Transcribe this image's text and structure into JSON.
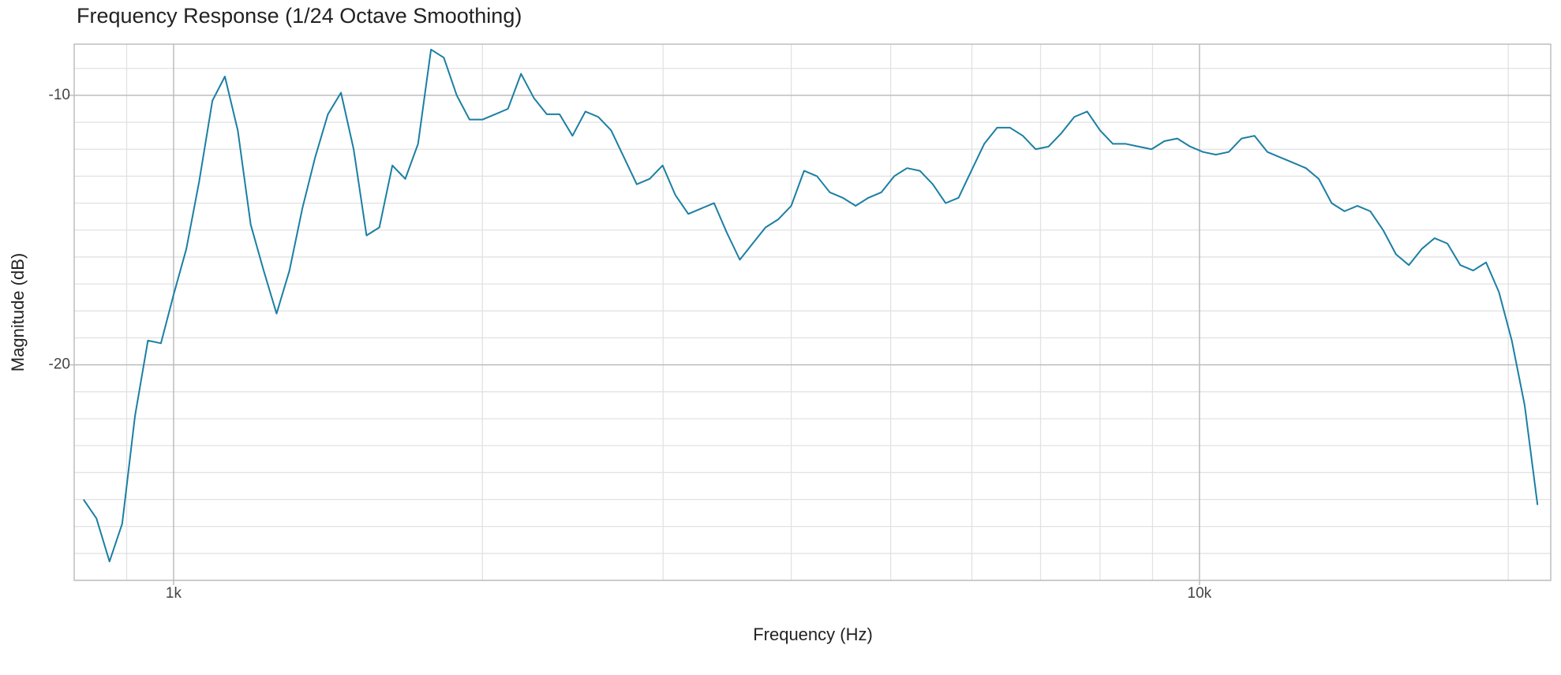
{
  "chart_data": {
    "type": "line",
    "title": "Frequency Response",
    "subtitle": "(1/24 Octave Smoothing)",
    "x_label": "Frequency (Hz)",
    "y_label": "Magnitude (dB)",
    "x_log": true,
    "grid": true,
    "color": "#1b7fa3",
    "xlim": [
      800,
      22000
    ],
    "ylim": [
      -28,
      -8.1
    ],
    "xticks": [
      {
        "value": 1000,
        "label": "1k"
      },
      {
        "value": 10000,
        "label": "10k"
      }
    ],
    "xminor_ticks": [
      900,
      2000,
      3000,
      4000,
      5000,
      6000,
      7000,
      8000,
      9000,
      20000
    ],
    "yticks": [
      -20,
      -10
    ],
    "yminor_ticks": [
      -28,
      -27,
      -26,
      -25,
      -24,
      -23,
      -22,
      -21,
      -19,
      -18,
      -17,
      -16,
      -15,
      -14,
      -13,
      -12,
      -11,
      -9
    ],
    "x": [
      817,
      841,
      866,
      891,
      917,
      944,
      972,
      1000,
      1029,
      1059,
      1091,
      1122,
      1155,
      1189,
      1224,
      1260,
      1297,
      1335,
      1374,
      1414,
      1456,
      1498,
      1542,
      1587,
      1634,
      1682,
      1731,
      1782,
      1834,
      1888,
      1943,
      2000,
      2059,
      2118,
      2181,
      2245,
      2311,
      2378,
      2448,
      2520,
      2594,
      2670,
      2748,
      2828,
      2911,
      2997,
      3084,
      3175,
      3268,
      3364,
      3462,
      3564,
      3668,
      3776,
      3886,
      4000,
      4117,
      4238,
      4362,
      4490,
      4622,
      4757,
      4896,
      5040,
      5188,
      5339,
      5496,
      5657,
      5823,
      5993,
      6169,
      6350,
      6536,
      6727,
      6924,
      7127,
      7336,
      7551,
      7772,
      8000,
      8234,
      8476,
      8724,
      8980,
      9243,
      9514,
      9793,
      10079,
      10375,
      10679,
      10992,
      11314,
      11646,
      11987,
      12338,
      12699,
      13071,
      13454,
      13848,
      14254,
      14672,
      15102,
      15544,
      16000,
      16469,
      16951,
      17448,
      17959,
      18486,
      19027,
      19585,
      20159,
      20749,
      21357
    ],
    "values": [
      -25.0,
      -25.7,
      -27.3,
      -25.9,
      -21.9,
      -19.1,
      -19.2,
      -17.4,
      -15.7,
      -13.2,
      -10.2,
      -9.3,
      -11.3,
      -14.8,
      -16.5,
      -18.1,
      -16.5,
      -14.2,
      -12.3,
      -10.7,
      -9.9,
      -12.0,
      -15.2,
      -14.9,
      -12.6,
      -13.1,
      -11.8,
      -8.3,
      -8.6,
      -10.0,
      -10.9,
      -10.9,
      -10.7,
      -10.5,
      -9.2,
      -10.1,
      -10.7,
      -10.7,
      -11.5,
      -10.6,
      -10.8,
      -11.3,
      -12.3,
      -13.3,
      -13.1,
      -12.6,
      -13.7,
      -14.4,
      -14.2,
      -14.0,
      -15.1,
      -16.1,
      -15.5,
      -14.9,
      -14.6,
      -14.1,
      -12.8,
      -13.0,
      -13.6,
      -13.8,
      -14.1,
      -13.8,
      -13.6,
      -13.0,
      -12.7,
      -12.8,
      -13.3,
      -14.0,
      -13.8,
      -12.8,
      -11.8,
      -11.2,
      -11.2,
      -11.5,
      -12.0,
      -11.9,
      -11.4,
      -10.8,
      -10.6,
      -11.3,
      -11.8,
      -11.8,
      -11.9,
      -12.0,
      -11.7,
      -11.6,
      -11.9,
      -12.1,
      -12.2,
      -12.1,
      -11.6,
      -11.5,
      -12.1,
      -12.3,
      -12.5,
      -12.7,
      -13.1,
      -14.0,
      -14.3,
      -14.1,
      -14.3,
      -15.0,
      -15.9,
      -16.3,
      -15.7,
      -15.3,
      -15.5,
      -16.3,
      -16.5,
      -16.2,
      -17.3,
      -19.1,
      -21.5,
      -25.2
    ]
  }
}
